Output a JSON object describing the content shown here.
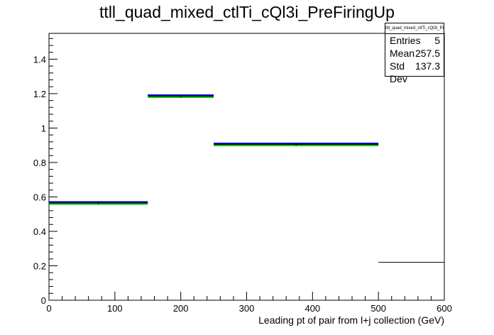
{
  "title": "ttll_quad_mixed_ctlTi_cQl3i_PreFiringUp",
  "stats": {
    "title": "ttll_quad_mixed_ctlTi_cQl3i_PreFiringUp",
    "rows": [
      {
        "label": "Entries",
        "value": "5"
      },
      {
        "label": "Mean",
        "value": "257.5"
      },
      {
        "label": "Std Dev",
        "value": "137.3"
      }
    ]
  },
  "chart_data": {
    "type": "histogram",
    "title": "ttll_quad_mixed_ctlTi_cQl3i_PreFiringUp",
    "xlabel": "Leading pt of pair from l+j collection (GeV)",
    "ylabel": "",
    "xlim": [
      0,
      600
    ],
    "ylim": [
      0,
      1.55
    ],
    "xticks": [
      0,
      100,
      200,
      300,
      400,
      500,
      600
    ],
    "yticks": [
      0,
      0.2,
      0.4,
      0.6,
      0.8,
      1.0,
      1.2,
      1.4
    ],
    "ytick_labels": [
      "0",
      "0.2",
      "0.4",
      "0.6",
      "0.8",
      "1",
      "1.2",
      "1.4"
    ],
    "bins": [
      {
        "x0": 0,
        "x1": 150,
        "value": 0.565
      },
      {
        "x0": 150,
        "x1": 250,
        "value": 1.185
      },
      {
        "x0": 250,
        "x1": 500,
        "value": 0.905
      },
      {
        "x0": 500,
        "x1": 600,
        "value": 0.22
      }
    ],
    "band_colors": [
      "#0000cc",
      "#00cc00"
    ]
  }
}
